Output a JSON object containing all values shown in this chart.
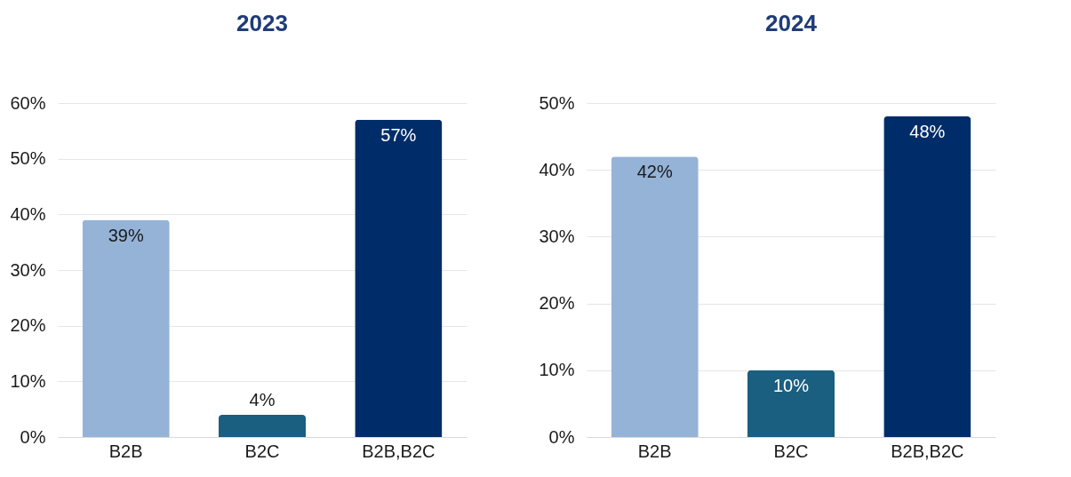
{
  "chart_data": [
    {
      "type": "bar",
      "title": "2023",
      "categories": [
        "B2B",
        "B2C",
        "B2B,B2C"
      ],
      "values": [
        39,
        4,
        57
      ],
      "colors": [
        "#95b3d7",
        "#1a5f80",
        "#002d6a"
      ],
      "value_labels": [
        "39%",
        "4%",
        "57%"
      ],
      "ylim": [
        0,
        60
      ],
      "yticks": [
        {
          "value": 0,
          "label": "0%"
        },
        {
          "value": 10,
          "label": "10%"
        },
        {
          "value": 20,
          "label": "20%"
        },
        {
          "value": 30,
          "label": "30%"
        },
        {
          "value": 40,
          "label": "40%"
        },
        {
          "value": 50,
          "label": "50%"
        },
        {
          "value": 60,
          "label": "60%"
        }
      ],
      "grid": "y"
    },
    {
      "type": "bar",
      "title": "2024",
      "categories": [
        "B2B",
        "B2C",
        "B2B,B2C"
      ],
      "values": [
        42,
        10,
        48
      ],
      "colors": [
        "#95b3d7",
        "#1a5f80",
        "#002d6a"
      ],
      "value_labels": [
        "42%",
        "10%",
        "48%"
      ],
      "ylim": [
        0,
        50
      ],
      "yticks": [
        {
          "value": 0,
          "label": "0%"
        },
        {
          "value": 10,
          "label": "10%"
        },
        {
          "value": 20,
          "label": "20%"
        },
        {
          "value": 30,
          "label": "30%"
        },
        {
          "value": 40,
          "label": "40%"
        },
        {
          "value": 50,
          "label": "50%"
        }
      ],
      "grid": "y"
    }
  ]
}
